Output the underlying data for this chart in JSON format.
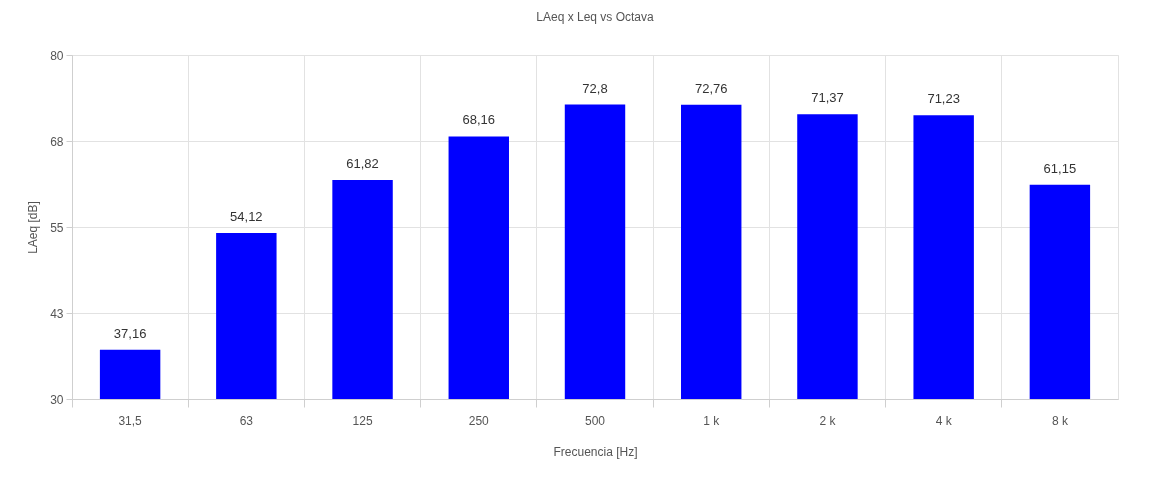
{
  "chart_data": {
    "type": "bar",
    "title": "LAeq x Leq vs Octava",
    "xlabel": "Frecuencia [Hz]",
    "ylabel": "LAeq [dB]",
    "categories": [
      "31,5",
      "63",
      "125",
      "250",
      "500",
      "1 k",
      "2 k",
      "4 k",
      "8 k"
    ],
    "values": [
      37.16,
      54.12,
      61.82,
      68.16,
      72.8,
      72.76,
      71.37,
      71.23,
      61.15
    ],
    "value_labels": [
      "37,16",
      "54,12",
      "61,82",
      "68,16",
      "72,8",
      "72,76",
      "71,37",
      "71,23",
      "61,15"
    ],
    "color": "#0000ff",
    "ylim": [
      30,
      80
    ],
    "yticks": [
      30,
      {
        "value": 42.5,
        "label": "43"
      },
      55,
      {
        "value": 67.5,
        "label": "68"
      },
      80
    ],
    "grid": true
  }
}
